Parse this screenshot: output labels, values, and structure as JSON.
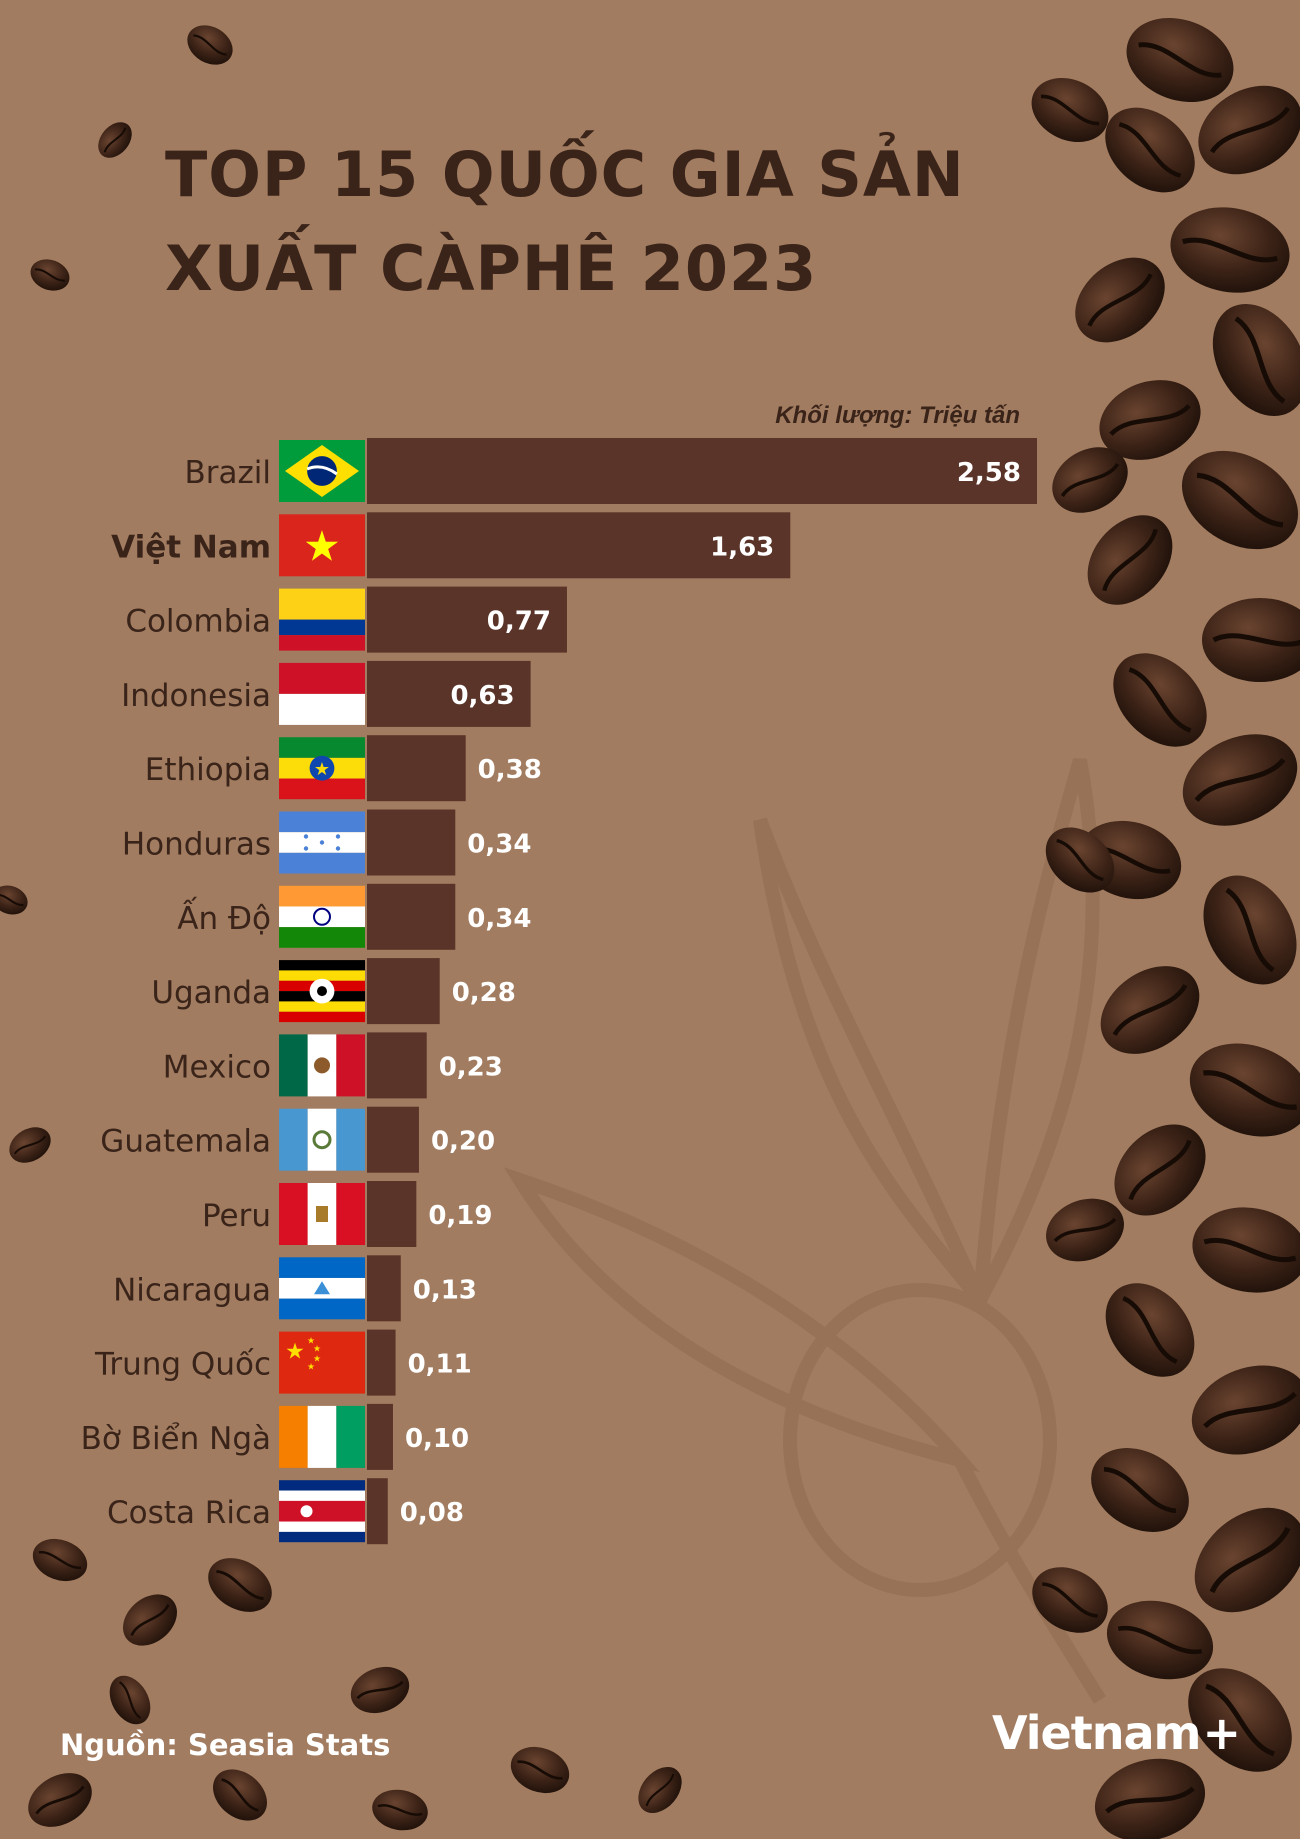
{
  "title": {
    "line1": "TOP 15 QUỐC GIA SẢN",
    "line2": "XUẤT CÀPHÊ 2023"
  },
  "unit_label": "Khối lượng: Triệu tấn",
  "source": "Nguồn: Seasia Stats",
  "logo": {
    "text": "Vietnam",
    "mark": "+"
  },
  "colors": {
    "background": "#a27c60",
    "bar": "#5a3428",
    "title": "#3a241a",
    "value_text": "#ffffff",
    "coffee_bean": "#3b2216"
  },
  "chart_data": {
    "type": "bar",
    "orientation": "horizontal",
    "xlim": [
      0,
      2.58
    ],
    "categories": [
      "Brazil",
      "Việt Nam",
      "Colombia",
      "Indonesia",
      "Ethiopia",
      "Honduras",
      "Ấn Độ",
      "Uganda",
      "Mexico",
      "Guatemala",
      "Peru",
      "Nicaragua",
      "Trung Quốc",
      "Bờ Biển Ngà",
      "Costa Rica"
    ],
    "values": [
      2.58,
      1.63,
      0.77,
      0.63,
      0.38,
      0.34,
      0.34,
      0.28,
      0.23,
      0.2,
      0.19,
      0.13,
      0.11,
      0.1,
      0.08
    ],
    "value_labels": [
      "2,58",
      "1,63",
      "0,77",
      "0,63",
      "0,38",
      "0,34",
      "0,34",
      "0,28",
      "0,23",
      "0,20",
      "0,19",
      "0,13",
      "0,11",
      "0,10",
      "0,08"
    ],
    "highlight": "Việt Nam",
    "flag_icons": [
      "brazil-flag-icon",
      "vietnam-flag-icon",
      "colombia-flag-icon",
      "indonesia-flag-icon",
      "ethiopia-flag-icon",
      "honduras-flag-icon",
      "india-flag-icon",
      "uganda-flag-icon",
      "mexico-flag-icon",
      "guatemala-flag-icon",
      "peru-flag-icon",
      "nicaragua-flag-icon",
      "china-flag-icon",
      "ivory-coast-flag-icon",
      "costa-rica-flag-icon"
    ]
  }
}
